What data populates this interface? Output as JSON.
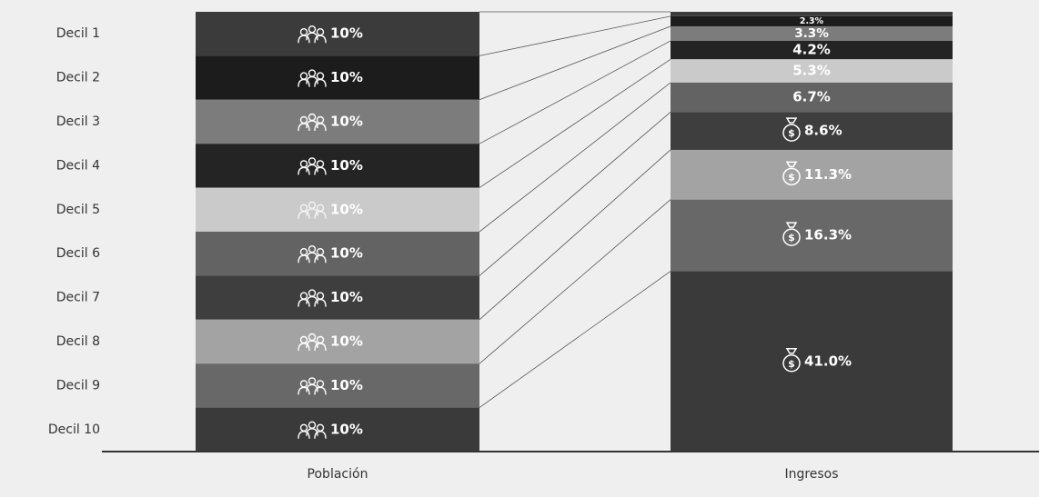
{
  "chart_data": {
    "type": "stacked-bar",
    "categories": [
      "Población",
      "Ingresos"
    ],
    "ylim": [
      0,
      100
    ],
    "series": [
      {
        "name": "Decil 1",
        "color": "#3b3b3b",
        "values": [
          10,
          1.0
        ],
        "value_labels": [
          "10%",
          null
        ]
      },
      {
        "name": "Decil 2",
        "color": "#1c1c1c",
        "values": [
          10,
          2.3
        ],
        "value_labels": [
          "10%",
          "2.3%"
        ]
      },
      {
        "name": "Decil 3",
        "color": "#7c7c7c",
        "values": [
          10,
          3.3
        ],
        "value_labels": [
          "10%",
          "3.3%"
        ]
      },
      {
        "name": "Decil 4",
        "color": "#242424",
        "values": [
          10,
          4.2
        ],
        "value_labels": [
          "10%",
          "4.2%"
        ]
      },
      {
        "name": "Decil 5",
        "color": "#cacaca",
        "values": [
          10,
          5.3
        ],
        "value_labels": [
          "10%",
          "5.3%"
        ]
      },
      {
        "name": "Decil 6",
        "color": "#636363",
        "values": [
          10,
          6.7
        ],
        "value_labels": [
          "10%",
          "6.7%"
        ]
      },
      {
        "name": "Decil 7",
        "color": "#3e3e3e",
        "values": [
          10,
          8.6
        ],
        "value_labels": [
          "10%",
          "8.6%"
        ]
      },
      {
        "name": "Decil 8",
        "color": "#a3a3a3",
        "values": [
          10,
          11.3
        ],
        "value_labels": [
          "10%",
          "11.3%"
        ]
      },
      {
        "name": "Decil 9",
        "color": "#686868",
        "values": [
          10,
          16.3
        ],
        "value_labels": [
          "10%",
          "16.3%"
        ]
      },
      {
        "name": "Decil 10",
        "color": "#3a3a3a",
        "values": [
          10,
          41.0
        ],
        "value_labels": [
          "10%",
          "41.0%"
        ]
      }
    ]
  }
}
